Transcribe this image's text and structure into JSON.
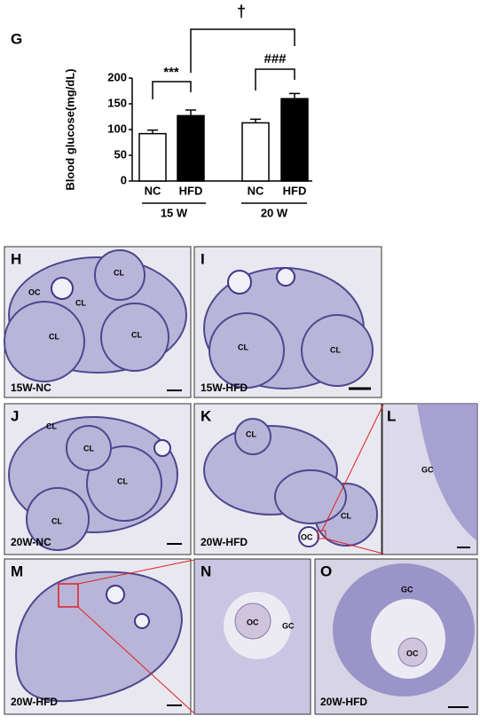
{
  "chart_data": {
    "type": "bar",
    "panel": "G",
    "ylabel": "Blood glucose(mg/dL)",
    "categories": [
      "NC",
      "HFD",
      "NC",
      "HFD"
    ],
    "values": [
      92,
      127,
      113,
      160
    ],
    "errors": [
      7,
      11,
      7,
      10
    ],
    "colors": [
      "#ffffff",
      "#000000",
      "#ffffff",
      "#000000"
    ],
    "groups": [
      "15 W",
      "20 W"
    ],
    "annotations": [
      "***",
      "###",
      "†"
    ],
    "ylim": [
      0,
      200
    ],
    "yticks": [
      0,
      50,
      100,
      150,
      200
    ]
  },
  "panels": [
    {
      "letter": "H",
      "caption": "15W-NC",
      "labels": [
        "OC",
        "CL",
        "CL",
        "CL",
        "CL"
      ]
    },
    {
      "letter": "I",
      "caption": "15W-HFD",
      "labels": [
        "CL",
        "CL"
      ]
    },
    {
      "letter": "J",
      "caption": "20W-NC",
      "labels": [
        "CL",
        "CL",
        "CL",
        "CL"
      ]
    },
    {
      "letter": "K",
      "caption": "20W-HFD",
      "labels": [
        "CL",
        "CL",
        "OC"
      ]
    },
    {
      "letter": "L",
      "labels": [
        "GC"
      ]
    },
    {
      "letter": "M",
      "caption": "20W-HFD"
    },
    {
      "letter": "N",
      "labels": [
        "OC",
        "GC"
      ]
    },
    {
      "letter": "O",
      "caption": "20W-HFD",
      "labels": [
        "GC",
        "OC"
      ]
    }
  ]
}
